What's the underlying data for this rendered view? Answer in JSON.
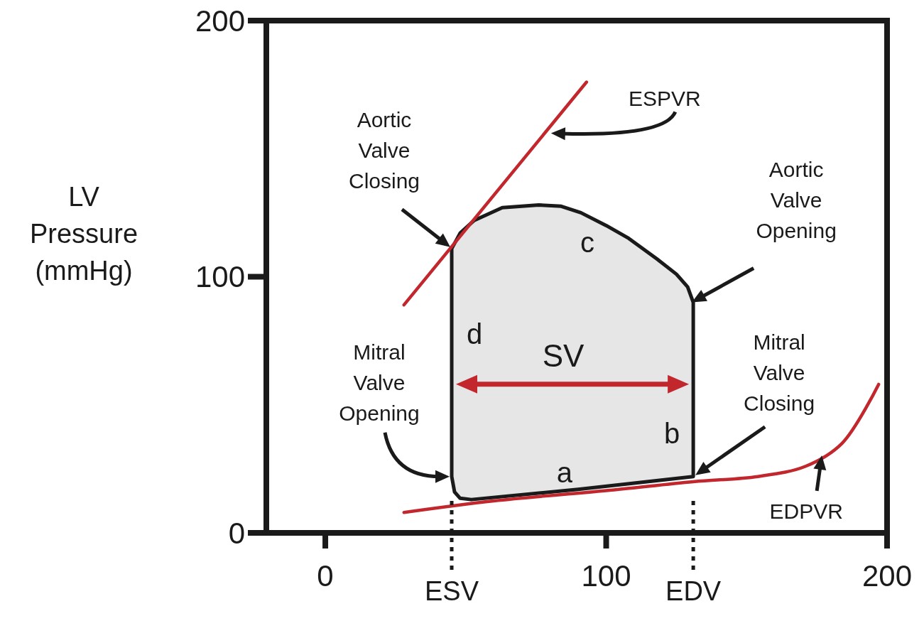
{
  "chart_data": {
    "type": "line",
    "ylabel": "LV Pressure (mmHg)",
    "xlim": [
      -21,
      200
    ],
    "ylim": [
      0,
      200
    ],
    "xticks": [
      0,
      100,
      200
    ],
    "yticks": [
      0,
      100,
      200
    ],
    "series": [
      {
        "type": "area",
        "color": "#1a1a1a",
        "x": [
          45,
          48,
          53,
          63,
          76,
          84,
          91,
          100,
          108,
          118,
          125,
          129,
          131,
          131,
          90,
          52,
          48,
          46,
          45
        ],
        "values": [
          111,
          117,
          122,
          127,
          128,
          127.5,
          125,
          120,
          115,
          107,
          101,
          96,
          90,
          22,
          17,
          13,
          13.5,
          16,
          22
        ]
      },
      {
        "color": "#c1272d",
        "x": [
          28,
          93
        ],
        "values": [
          89,
          176
        ]
      },
      {
        "color": "#c1272d",
        "x": [
          28,
          60,
          100,
          131,
          154,
          171,
          184,
          197
        ],
        "values": [
          8,
          12.5,
          16.5,
          20,
          22,
          26,
          35,
          58
        ]
      }
    ],
    "ref_lines": [
      {
        "axis": "x",
        "value": 45,
        "label": "ESV",
        "line_style": "dotted",
        "color": "#1a1a1a"
      },
      {
        "axis": "x",
        "value": 131,
        "label": "EDV",
        "line_style": "dotted",
        "color": "#1a1a1a"
      }
    ],
    "annotations": [
      "Aortic Valve Closing",
      "Aortic Valve Opening",
      "Mitral Valve Closing",
      "Mitral Valve Opening",
      "c",
      "d",
      "SV",
      "b",
      "a",
      "ESPVR",
      "EDPVR"
    ]
  }
}
